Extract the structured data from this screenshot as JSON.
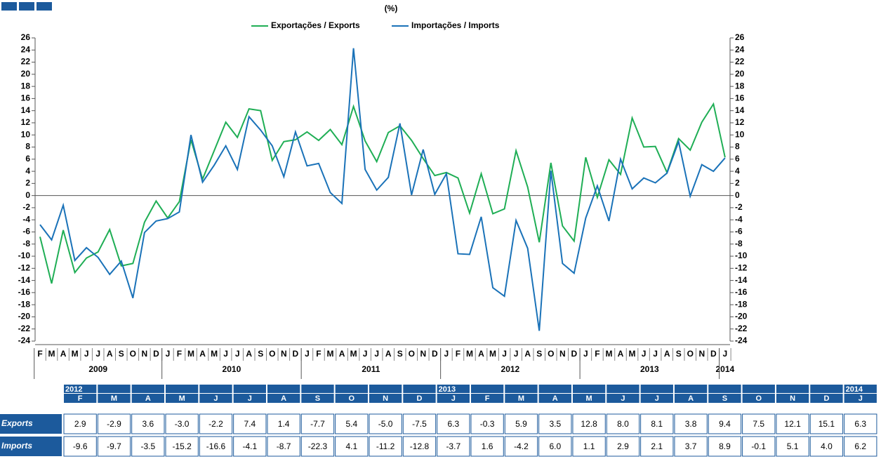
{
  "chart_data": {
    "type": "line",
    "title": "(%)",
    "groups": [
      {
        "label": "2009",
        "categories": [
          "F",
          "M",
          "A",
          "M",
          "J",
          "J",
          "A",
          "S",
          "O",
          "N",
          "D"
        ]
      },
      {
        "label": "2010",
        "categories": [
          "J",
          "F",
          "M",
          "A",
          "M",
          "J",
          "J",
          "A",
          "S",
          "O",
          "N",
          "D"
        ]
      },
      {
        "label": "2011",
        "categories": [
          "J",
          "F",
          "M",
          "A",
          "M",
          "J",
          "J",
          "A",
          "S",
          "O",
          "N",
          "D"
        ]
      },
      {
        "label": "2012",
        "categories": [
          "J",
          "F",
          "M",
          "A",
          "M",
          "J",
          "J",
          "A",
          "S",
          "O",
          "N",
          "D"
        ]
      },
      {
        "label": "2013",
        "categories": [
          "J",
          "F",
          "M",
          "A",
          "M",
          "J",
          "J",
          "A",
          "S",
          "O",
          "N",
          "D"
        ]
      },
      {
        "label": "2014",
        "categories": [
          "J"
        ]
      }
    ],
    "series": [
      {
        "name": "Exportações / Exports",
        "color": "#1fae55",
        "values": [
          -6.8,
          -14.5,
          -5.7,
          -12.7,
          -10.3,
          -9.3,
          -5.6,
          -11.6,
          -11.2,
          -4.4,
          -0.9,
          -3.7,
          -1.0,
          9.2,
          2.7,
          7.4,
          12.1,
          9.6,
          14.3,
          14.0,
          5.8,
          8.9,
          9.2,
          10.5,
          9.1,
          10.9,
          8.4,
          14.7,
          9.0,
          5.6,
          10.4,
          11.5,
          9.1,
          6.1,
          3.3,
          3.8,
          2.9,
          -2.9,
          3.6,
          -3.0,
          -2.2,
          7.4,
          1.4,
          -7.7,
          5.4,
          -5.0,
          -7.5,
          6.3,
          -0.3,
          5.9,
          3.5,
          12.8,
          8.0,
          8.1,
          3.8,
          9.4,
          7.5,
          12.1,
          15.1,
          6.3
        ]
      },
      {
        "name": "Importações / Imports",
        "color": "#1a72b8",
        "values": [
          -4.8,
          -7.3,
          -1.6,
          -10.7,
          -8.6,
          -10.2,
          -13.0,
          -10.8,
          -16.9,
          -6.1,
          -4.2,
          -3.8,
          -2.7,
          10.0,
          2.2,
          5.0,
          8.2,
          4.3,
          13.0,
          10.8,
          8.2,
          3.1,
          10.5,
          4.9,
          5.3,
          0.5,
          -1.3,
          24.3,
          4.3,
          0.9,
          3.0,
          11.9,
          0.1,
          7.6,
          0.2,
          3.6,
          -9.6,
          -9.7,
          -3.5,
          -15.2,
          -16.6,
          -4.1,
          -8.7,
          -22.3,
          4.1,
          -11.2,
          -12.8,
          -3.7,
          1.6,
          -4.2,
          6.0,
          1.1,
          2.9,
          2.1,
          3.7,
          8.9,
          -0.1,
          5.1,
          4.0,
          6.2
        ]
      }
    ],
    "ylim": [
      -24,
      26
    ],
    "yticks": [
      -24,
      -22,
      -20,
      -18,
      -16,
      -14,
      -12,
      -10,
      -8,
      -6,
      -4,
      -2,
      0,
      2,
      4,
      6,
      8,
      10,
      12,
      14,
      16,
      18,
      20,
      22,
      24,
      26
    ]
  },
  "table": {
    "columns": [
      {
        "year": "2012",
        "month": "F"
      },
      {
        "month": "M"
      },
      {
        "month": "A"
      },
      {
        "month": "M"
      },
      {
        "month": "J"
      },
      {
        "month": "J"
      },
      {
        "month": "A"
      },
      {
        "month": "S"
      },
      {
        "month": "O"
      },
      {
        "month": "N"
      },
      {
        "month": "D"
      },
      {
        "year": "2013",
        "month": "J"
      },
      {
        "month": "F"
      },
      {
        "month": "M"
      },
      {
        "month": "A"
      },
      {
        "month": "M"
      },
      {
        "month": "J"
      },
      {
        "month": "J"
      },
      {
        "month": "A"
      },
      {
        "month": "S"
      },
      {
        "month": "O"
      },
      {
        "month": "N"
      },
      {
        "month": "D"
      },
      {
        "year": "2014",
        "month": "J"
      }
    ],
    "rows": [
      {
        "label": "Exports",
        "cells": [
          "2.9",
          "-2.9",
          "3.6",
          "-3.0",
          "-2.2",
          "7.4",
          "1.4",
          "-7.7",
          "5.4",
          "-5.0",
          "-7.5",
          "6.3",
          "-0.3",
          "5.9",
          "3.5",
          "12.8",
          "8.0",
          "8.1",
          "3.8",
          "9.4",
          "7.5",
          "12.1",
          "15.1",
          "6.3"
        ]
      },
      {
        "label": "Imports",
        "cells": [
          "-9.6",
          "-9.7",
          "-3.5",
          "-15.2",
          "-16.6",
          "-4.1",
          "-8.7",
          "-22.3",
          "4.1",
          "-11.2",
          "-12.8",
          "-3.7",
          "1.6",
          "-4.2",
          "6.0",
          "1.1",
          "2.9",
          "2.1",
          "3.7",
          "8.9",
          "-0.1",
          "5.1",
          "4.0",
          "6.2"
        ]
      }
    ]
  }
}
